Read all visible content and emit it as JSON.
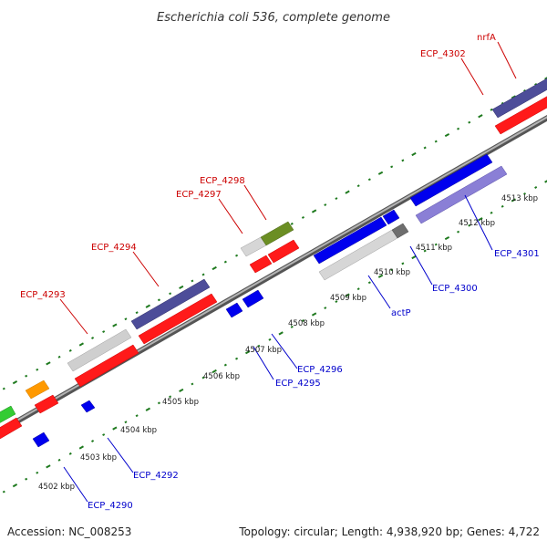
{
  "title": "Escherichia coli 536, complete genome",
  "footer": {
    "accession": "Accession: NC_008253",
    "topology": "Topology: circular; Length: 4,938,920 bp; Genes: 4,722"
  },
  "colors": {
    "backbone": "#8c8c8c",
    "ticks": "#1f7a1f",
    "label_top": "#cc0000",
    "label_bottom": "#0000cc",
    "gene_red": "#ff0000",
    "gene_blue": "#0000ee",
    "gene_gray": "#c8c8c8",
    "gene_darkgray": "#6e6e6e",
    "gene_purple": "#4d4d99",
    "gene_olive": "#6b8e23",
    "gene_orange": "#ff9900",
    "gene_green": "#33cc33",
    "gene_lightpurple": "#8a7fd6"
  },
  "kbp_ticks": [
    "4502 kbp",
    "4503 kbp",
    "4504 kbp",
    "4505 kbp",
    "4506 kbp",
    "4507 kbp",
    "4508 kbp",
    "4509 kbp",
    "4510 kbp",
    "4511 kbp",
    "4512 kbp",
    "4513 kbp"
  ],
  "gene_labels_top": [
    "ECP_4293",
    "ECP_4294",
    "ECP_4297",
    "ECP_4298",
    "ECP_4302",
    "nrfA"
  ],
  "gene_labels_bottom": [
    "ECP_4290",
    "ECP_4292",
    "ECP_4295",
    "ECP_4296",
    "actP",
    "ECP_4300",
    "ECP_4301"
  ]
}
